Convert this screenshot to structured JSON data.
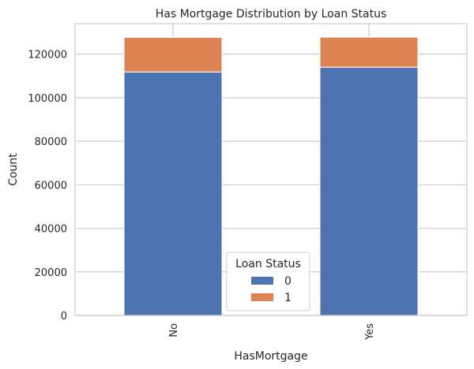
{
  "chart_data": {
    "type": "bar",
    "stacked": true,
    "title": "Has Mortgage Distribution by Loan Status",
    "xlabel": "HasMortgage",
    "ylabel": "Count",
    "categories": [
      "No",
      "Yes"
    ],
    "series": [
      {
        "name": "0",
        "values": [
          111800,
          114000
        ],
        "color": "#4c72b0"
      },
      {
        "name": "1",
        "values": [
          15900,
          13800
        ],
        "color": "#dd8452"
      }
    ],
    "ylim": [
      0,
      134000
    ],
    "yticks": [
      0,
      20000,
      40000,
      60000,
      80000,
      100000,
      120000
    ],
    "ytick_labels": [
      "0",
      "20000",
      "40000",
      "60000",
      "80000",
      "100000",
      "120000"
    ],
    "grid": true,
    "legend": {
      "title": "Loan Status",
      "placement": "lower-center"
    }
  }
}
